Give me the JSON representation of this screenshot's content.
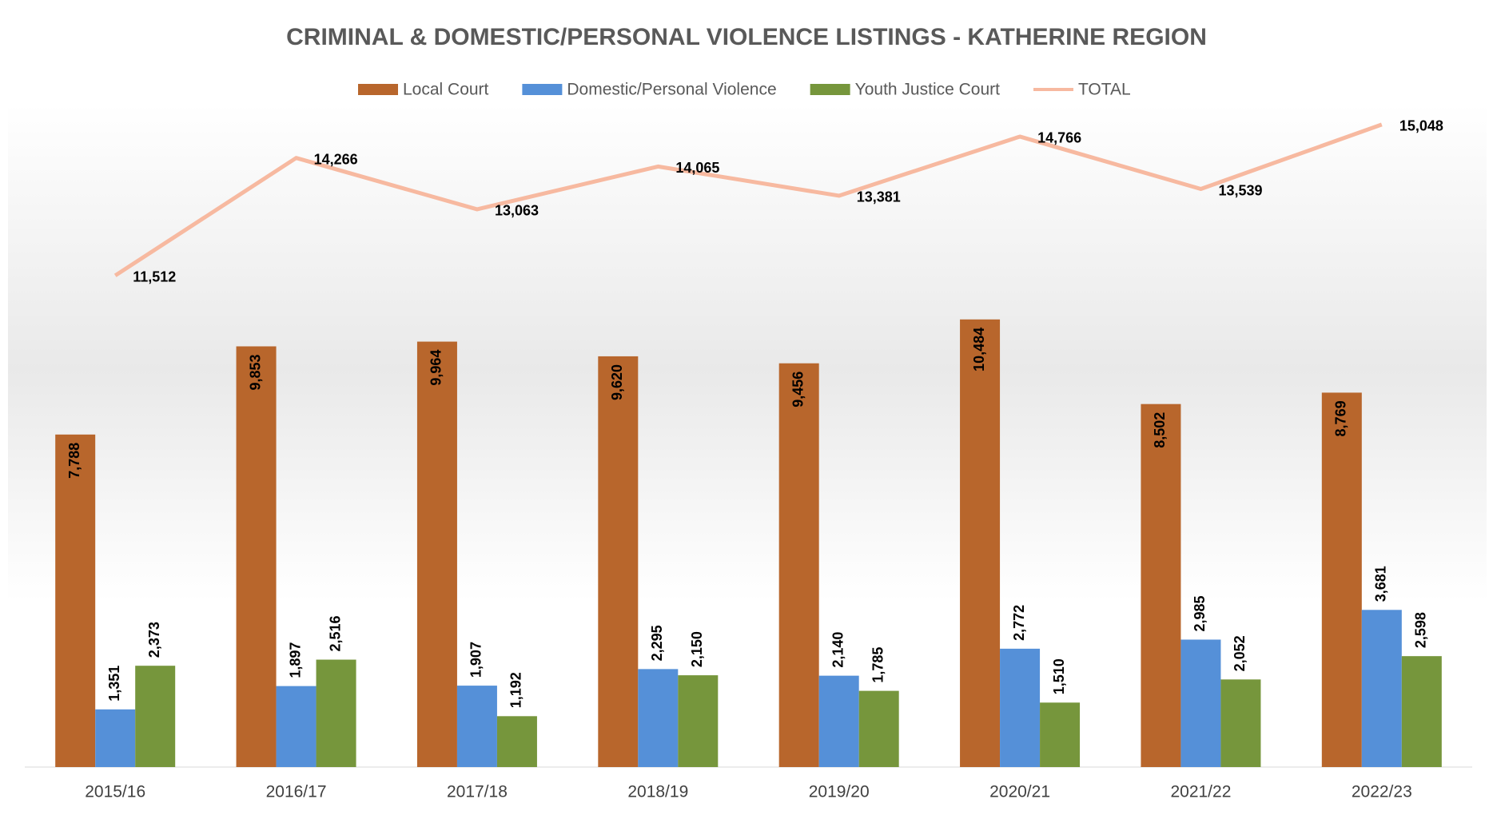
{
  "chart_data": {
    "type": "bar",
    "title": "CRIMINAL & DOMESTIC/PERSONAL VIOLENCE LISTINGS - KATHERINE REGION",
    "categories": [
      "2015/16",
      "2016/17",
      "2017/18",
      "2018/19",
      "2019/20",
      "2020/21",
      "2021/22",
      "2022/23"
    ],
    "ylim": [
      0,
      16000
    ],
    "legend": "top",
    "series": [
      {
        "name": "Local Court",
        "color": "#b8662c",
        "values": [
          7788,
          9853,
          9964,
          9620,
          9456,
          10484,
          8502,
          8769
        ],
        "value_labels": [
          "7,788",
          "9,853",
          "9,964",
          "9,620",
          "9,456",
          "10,484",
          "8,502",
          "8,769"
        ]
      },
      {
        "name": "Domestic/Personal Violence",
        "color": "#5590d8",
        "values": [
          1351,
          1897,
          1907,
          2295,
          2140,
          2772,
          2985,
          3681
        ],
        "value_labels": [
          "1,351",
          "1,897",
          "1,907",
          "2,295",
          "2,140",
          "2,772",
          "2,985",
          "3,681"
        ]
      },
      {
        "name": "Youth Justice Court",
        "color": "#76963c",
        "values": [
          2373,
          2516,
          1192,
          2150,
          1785,
          1510,
          2052,
          2598
        ],
        "value_labels": [
          "2,373",
          "2,516",
          "1,192",
          "2,150",
          "1,785",
          "1,510",
          "2,052",
          "2,598"
        ]
      },
      {
        "name": "TOTAL",
        "type": "line",
        "color": "#f7b9a0",
        "values": [
          11512,
          14266,
          13063,
          14065,
          13381,
          14766,
          13539,
          15048
        ],
        "value_labels": [
          "11,512",
          "14,266",
          "13,063",
          "14,065",
          "13,381",
          "14,766",
          "13,539",
          "15,048"
        ]
      }
    ]
  }
}
